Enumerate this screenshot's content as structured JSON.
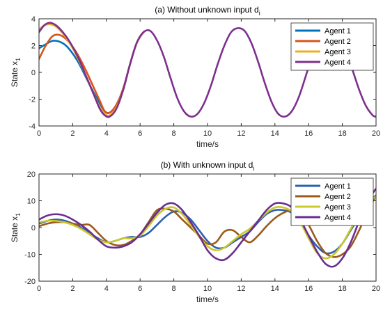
{
  "colors": {
    "Agent 1": "#0072BD",
    "Agent 2": "#D95319",
    "Agent 3": "#EDB120",
    "Agent 4": "#7E2F8E",
    "Agent 1 (b)": "#2E5FB0",
    "Agent 2 (b)": "#9B5A1A",
    "Agent 3 (b)": "#C9C92A",
    "Agent 4 (b)": "#6A2D91"
  },
  "chart_data": [
    {
      "type": "line",
      "title_main": "(a) Without unknown input d",
      "title_sub": "i",
      "xlabel": "time/s",
      "ylabel_main": "State x",
      "ylabel_sub": "1",
      "xlim": [
        0,
        20
      ],
      "ylim": [
        -4,
        4
      ],
      "xticks": [
        0,
        2,
        4,
        6,
        8,
        10,
        12,
        14,
        16,
        18,
        20
      ],
      "yticks": [
        -4,
        -2,
        0,
        2,
        4
      ],
      "legend_position": "top-right",
      "series": [
        {
          "name": "Agent 1",
          "color": "#0072BD",
          "x": [
            0,
            0.4,
            0.8,
            1.2,
            1.6,
            2.0,
            2.4,
            2.8,
            3.2,
            3.6,
            3.9,
            4.2,
            4.6,
            5.0,
            5.4,
            5.8,
            6.2
          ],
          "y": [
            1.8,
            2.1,
            2.35,
            2.3,
            2.0,
            1.4,
            0.6,
            -0.4,
            -1.4,
            -2.3,
            -2.9,
            -3.0,
            -2.4,
            -1.2,
            0.6,
            2.2,
            3.0
          ]
        },
        {
          "name": "Agent 2",
          "color": "#D95319",
          "x": [
            0,
            0.4,
            0.8,
            1.2,
            1.6,
            2.0,
            2.4,
            2.8,
            3.2,
            3.6,
            3.9,
            4.2,
            4.6,
            5.0,
            5.4,
            5.8,
            6.2
          ],
          "y": [
            1.0,
            2.0,
            2.7,
            2.8,
            2.5,
            1.9,
            1.1,
            0.1,
            -1.0,
            -2.1,
            -2.9,
            -3.0,
            -2.4,
            -1.2,
            0.6,
            2.2,
            3.0
          ]
        },
        {
          "name": "Agent 3",
          "color": "#EDB120",
          "x": [
            0,
            0.3,
            0.6,
            0.9,
            1.2,
            1.6,
            2.0,
            2.4,
            2.8,
            3.2,
            3.6,
            3.9,
            4.2,
            4.6,
            5.0,
            5.4,
            5.8,
            6.2
          ],
          "y": [
            3.2,
            3.5,
            3.6,
            3.5,
            3.2,
            2.6,
            1.8,
            0.8,
            -0.3,
            -1.5,
            -2.6,
            -3.1,
            -3.2,
            -2.6,
            -1.3,
            0.6,
            2.2,
            3.0
          ]
        },
        {
          "name": "Agent 4",
          "color": "#7E2F8E",
          "x": [
            0,
            0.3,
            0.6,
            0.9,
            1.2,
            1.6,
            2.0,
            2.4,
            2.8,
            3.2,
            3.6,
            3.9,
            4.2,
            4.6,
            5.0,
            5.4,
            5.8,
            6.2,
            6.6,
            7.0,
            7.4,
            7.8,
            8.2,
            8.6,
            9.0,
            9.4,
            9.8,
            10.2,
            10.6,
            11.0,
            11.4,
            11.8,
            12.2,
            12.6,
            13.0,
            13.4,
            13.8,
            14.2,
            14.6,
            15.0,
            15.4,
            15.8,
            16.2,
            16.6,
            17.0,
            17.4,
            17.8,
            18.2,
            18.6,
            19.0,
            19.4,
            19.8,
            20.0
          ],
          "y": [
            3.0,
            3.5,
            3.7,
            3.6,
            3.3,
            2.7,
            1.9,
            0.9,
            -0.3,
            -1.5,
            -2.7,
            -3.2,
            -3.3,
            -2.7,
            -1.3,
            0.6,
            2.2,
            3.0,
            3.1,
            2.4,
            1.2,
            -0.4,
            -1.9,
            -2.9,
            -3.3,
            -3.1,
            -2.3,
            -1.0,
            0.6,
            2.0,
            3.0,
            3.3,
            3.1,
            2.2,
            0.8,
            -0.8,
            -2.2,
            -3.1,
            -3.3,
            -2.9,
            -1.9,
            -0.4,
            1.2,
            2.4,
            3.1,
            3.3,
            2.8,
            1.7,
            0.2,
            -1.3,
            -2.5,
            -3.2,
            -3.3
          ]
        }
      ]
    },
    {
      "type": "line",
      "title_main": "(b) With unknown input d",
      "title_sub": "i",
      "xlabel": "time/s",
      "ylabel_main": "State x",
      "ylabel_sub": "1",
      "xlim": [
        0,
        20
      ],
      "ylim": [
        -20,
        20
      ],
      "xticks": [
        0,
        2,
        4,
        6,
        8,
        10,
        12,
        14,
        16,
        18,
        20
      ],
      "yticks": [
        -20,
        -10,
        0,
        10,
        20
      ],
      "legend_position": "top-right",
      "series": [
        {
          "name": "Agent 1",
          "color": "#2E5FB0",
          "x": [
            0,
            0.5,
            1,
            1.5,
            2,
            2.5,
            3,
            3.5,
            4,
            4.5,
            5,
            5.5,
            6,
            6.5,
            7,
            7.5,
            8,
            8.5,
            9,
            9.5,
            10,
            10.5,
            11,
            11.5,
            12,
            12.5,
            13,
            13.5,
            14,
            14.5,
            15,
            15.5,
            16,
            16.5,
            17,
            17.5,
            18,
            18.5,
            19,
            19.5,
            20
          ],
          "y": [
            1.5,
            2.5,
            3.0,
            2.6,
            1.5,
            0.0,
            -2.0,
            -4.0,
            -5.5,
            -5.0,
            -4.0,
            -3.5,
            -3.5,
            -2.0,
            1.0,
            4.0,
            6.0,
            5.5,
            3.0,
            -1.0,
            -5.0,
            -7.5,
            -7.5,
            -5.5,
            -3.5,
            -1.5,
            2.0,
            5.0,
            6.5,
            6.5,
            5.5,
            2.0,
            -3.0,
            -7.0,
            -9.5,
            -9.0,
            -6.0,
            -1.0,
            4.0,
            9.0,
            12.0
          ]
        },
        {
          "name": "Agent 2",
          "color": "#9B5A1A",
          "x": [
            0,
            0.5,
            1,
            1.5,
            2,
            2.5,
            3,
            3.5,
            4,
            4.5,
            5,
            5.5,
            6,
            6.5,
            7,
            7.5,
            8,
            8.5,
            9,
            9.5,
            10,
            10.5,
            11,
            11.5,
            12,
            12.5,
            13,
            13.5,
            14,
            14.5,
            15,
            15.5,
            16,
            16.5,
            17,
            17.5,
            18,
            18.5,
            19,
            19.5,
            20
          ],
          "y": [
            0.5,
            1.5,
            2.0,
            2.0,
            1.5,
            1.0,
            1.0,
            -2.0,
            -5.0,
            -6.5,
            -6.5,
            -5.0,
            -2.5,
            2.0,
            6.5,
            7.0,
            6.0,
            3.0,
            0.0,
            -3.0,
            -6.0,
            -5.5,
            -1.5,
            -1.0,
            -3.5,
            -5.5,
            -3.0,
            0.5,
            3.5,
            5.5,
            6.5,
            5.0,
            1.0,
            -5.0,
            -9.5,
            -11.0,
            -10.0,
            -7.0,
            -1.0,
            6.0,
            12.0
          ]
        },
        {
          "name": "Agent 3",
          "color": "#C9C92A",
          "x": [
            0,
            0.5,
            1,
            1.5,
            2,
            2.5,
            3,
            3.5,
            4,
            4.5,
            5,
            5.5,
            6,
            6.5,
            7,
            7.5,
            8,
            8.5,
            9,
            9.5,
            10,
            10.5,
            11,
            11.5,
            12,
            12.5,
            13,
            13.5,
            14,
            14.5,
            15,
            15.5,
            16,
            16.5,
            17,
            17.5,
            18,
            18.5,
            19,
            19.5,
            20
          ],
          "y": [
            2.0,
            2.5,
            2.5,
            2.0,
            1.0,
            -0.5,
            -2.5,
            -4.5,
            -5.5,
            -5.0,
            -4.0,
            -4.0,
            -3.0,
            0.5,
            4.5,
            7.0,
            7.5,
            5.0,
            1.0,
            -3.5,
            -7.0,
            -8.5,
            -7.5,
            -5.0,
            -2.5,
            -0.5,
            2.5,
            5.5,
            7.5,
            7.5,
            6.0,
            2.0,
            -4.0,
            -9.5,
            -11.5,
            -10.0,
            -6.0,
            -0.5,
            5.0,
            9.5,
            11.5
          ]
        },
        {
          "name": "Agent 4",
          "color": "#6A2D91",
          "x": [
            0,
            0.5,
            1,
            1.5,
            2,
            2.5,
            3,
            3.5,
            4,
            4.5,
            5,
            5.5,
            6,
            6.5,
            7,
            7.5,
            8,
            8.5,
            9,
            9.5,
            10,
            10.5,
            11,
            11.5,
            12,
            12.5,
            13,
            13.5,
            14,
            14.5,
            15,
            15.5,
            16,
            16.5,
            17,
            17.5,
            18,
            18.5,
            19,
            19.5,
            20
          ],
          "y": [
            3.0,
            4.5,
            5.0,
            4.5,
            3.0,
            1.0,
            -1.5,
            -4.5,
            -7.0,
            -7.5,
            -7.0,
            -5.5,
            -2.5,
            1.5,
            5.5,
            8.5,
            9.0,
            6.5,
            2.0,
            -3.0,
            -8.5,
            -11.5,
            -12.0,
            -9.5,
            -5.5,
            -1.5,
            2.5,
            6.5,
            9.0,
            9.0,
            7.5,
            3.0,
            -3.0,
            -9.0,
            -13.5,
            -14.5,
            -11.5,
            -5.5,
            2.5,
            10.0,
            14.5
          ]
        }
      ]
    }
  ]
}
